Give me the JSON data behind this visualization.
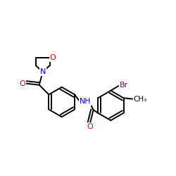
{
  "background_color": "#ffffff",
  "bond_color": "#000000",
  "atom_colors": {
    "O": "#ff0000",
    "N": "#0000ff",
    "Br": "#800080",
    "C": "#000000"
  },
  "figsize": [
    2.5,
    2.5
  ],
  "dpi": 100,
  "xlim": [
    0,
    10
  ],
  "ylim": [
    0,
    10
  ]
}
